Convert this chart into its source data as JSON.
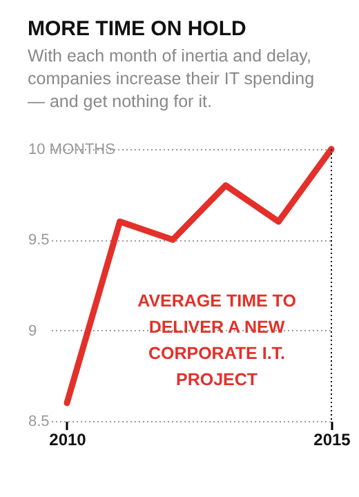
{
  "chart_data": {
    "type": "line",
    "title": "MORE TIME ON HOLD",
    "subtitle": "With each month of inertia and delay, companies increase their IT spending — and get nothing for it.",
    "annotations": [
      "AVERAGE TIME TO DELIVER A NEW CORPORATE I.T. PROJECT"
    ],
    "x": [
      2010,
      2011,
      2012,
      2013,
      2014,
      2015
    ],
    "series": [
      {
        "color": "#e3302a",
        "values": [
          8.6,
          9.6,
          9.5,
          9.8,
          9.6,
          10.0
        ]
      }
    ],
    "xlim": [
      2009.7,
      2015
    ],
    "xticks": [
      2010,
      2015
    ],
    "ylim": [
      8.5,
      10
    ],
    "yticks": [
      8.5,
      9,
      9.5,
      {
        "value": 10,
        "label": "10 MONTHS"
      }
    ],
    "ref_lines": [
      {
        "axis": "x",
        "value": 2015,
        "color": "#000000",
        "line_style": "dotted"
      }
    ],
    "grid": "y",
    "marker": "none",
    "line_style": "solid"
  }
}
